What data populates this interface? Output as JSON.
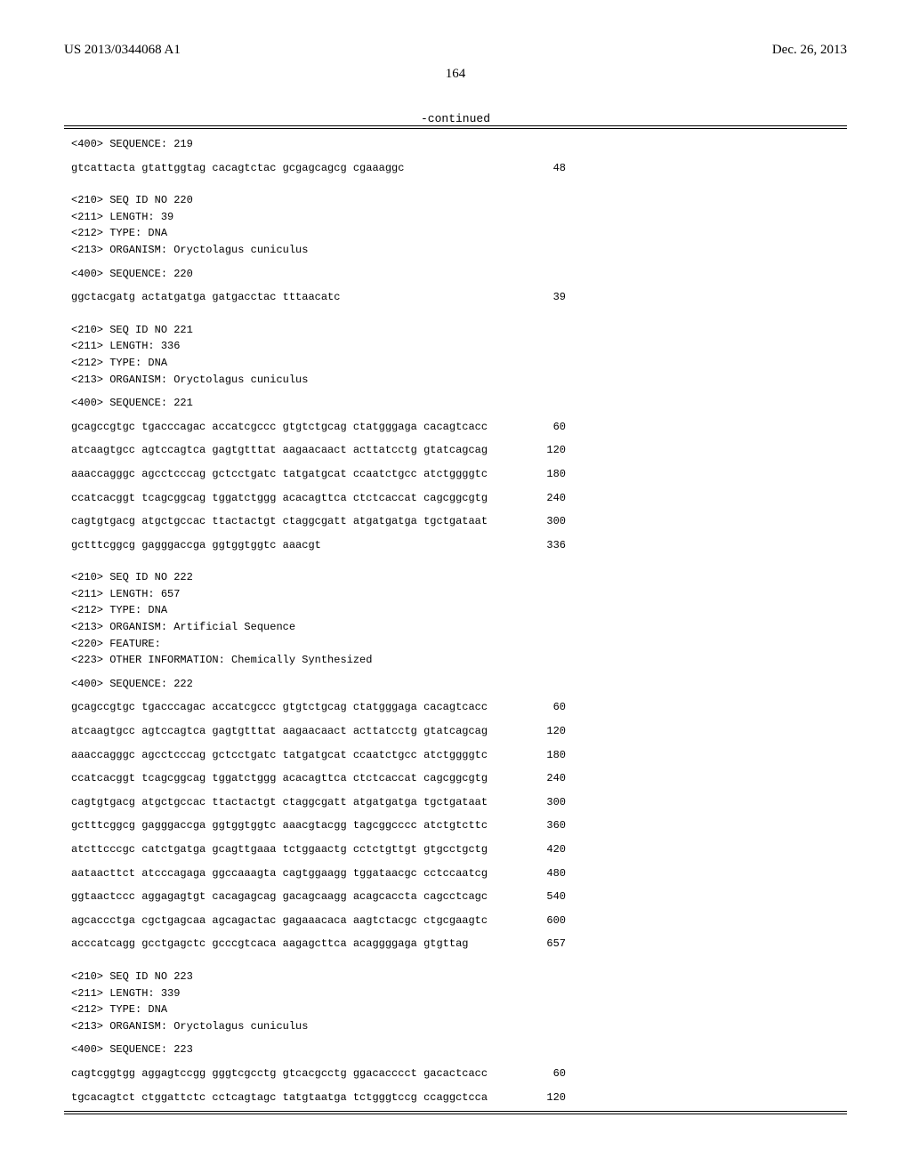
{
  "header": {
    "pubnum": "US 2013/0344068 A1",
    "pubdate": "Dec. 26, 2013",
    "pagenum": "164",
    "continued": "-continued"
  },
  "blocks": [
    {
      "t": "meta",
      "v": "<400> SEQUENCE: 219"
    },
    {
      "t": "gapsm"
    },
    {
      "t": "seq",
      "s": "gtcattacta gtattggtag cacagtctac gcgagcagcg cgaaaggc",
      "n": "48"
    },
    {
      "t": "gap"
    },
    {
      "t": "meta",
      "v": "<210> SEQ ID NO 220"
    },
    {
      "t": "meta",
      "v": "<211> LENGTH: 39"
    },
    {
      "t": "meta",
      "v": "<212> TYPE: DNA"
    },
    {
      "t": "meta",
      "v": "<213> ORGANISM: Oryctolagus cuniculus"
    },
    {
      "t": "gapsm"
    },
    {
      "t": "meta",
      "v": "<400> SEQUENCE: 220"
    },
    {
      "t": "gapsm"
    },
    {
      "t": "seq",
      "s": "ggctacgatg actatgatga gatgacctac tttaacatc",
      "n": "39"
    },
    {
      "t": "gap"
    },
    {
      "t": "meta",
      "v": "<210> SEQ ID NO 221"
    },
    {
      "t": "meta",
      "v": "<211> LENGTH: 336"
    },
    {
      "t": "meta",
      "v": "<212> TYPE: DNA"
    },
    {
      "t": "meta",
      "v": "<213> ORGANISM: Oryctolagus cuniculus"
    },
    {
      "t": "gapsm"
    },
    {
      "t": "meta",
      "v": "<400> SEQUENCE: 221"
    },
    {
      "t": "gapsm"
    },
    {
      "t": "seq",
      "s": "gcagccgtgc tgacccagac accatcgccc gtgtctgcag ctatgggaga cacagtcacc",
      "n": "60"
    },
    {
      "t": "gapsm"
    },
    {
      "t": "seq",
      "s": "atcaagtgcc agtccagtca gagtgtttat aagaacaact acttatcctg gtatcagcag",
      "n": "120"
    },
    {
      "t": "gapsm"
    },
    {
      "t": "seq",
      "s": "aaaccagggc agcctcccag gctcctgatc tatgatgcat ccaatctgcc atctggggtc",
      "n": "180"
    },
    {
      "t": "gapsm"
    },
    {
      "t": "seq",
      "s": "ccatcacggt tcagcggcag tggatctggg acacagttca ctctcaccat cagcggcgtg",
      "n": "240"
    },
    {
      "t": "gapsm"
    },
    {
      "t": "seq",
      "s": "cagtgtgacg atgctgccac ttactactgt ctaggcgatt atgatgatga tgctgataat",
      "n": "300"
    },
    {
      "t": "gapsm"
    },
    {
      "t": "seq",
      "s": "gctttcggcg gagggaccga ggtggtggtc aaacgt",
      "n": "336"
    },
    {
      "t": "gap"
    },
    {
      "t": "meta",
      "v": "<210> SEQ ID NO 222"
    },
    {
      "t": "meta",
      "v": "<211> LENGTH: 657"
    },
    {
      "t": "meta",
      "v": "<212> TYPE: DNA"
    },
    {
      "t": "meta",
      "v": "<213> ORGANISM: Artificial Sequence"
    },
    {
      "t": "meta",
      "v": "<220> FEATURE:"
    },
    {
      "t": "meta",
      "v": "<223> OTHER INFORMATION: Chemically Synthesized"
    },
    {
      "t": "gapsm"
    },
    {
      "t": "meta",
      "v": "<400> SEQUENCE: 222"
    },
    {
      "t": "gapsm"
    },
    {
      "t": "seq",
      "s": "gcagccgtgc tgacccagac accatcgccc gtgtctgcag ctatgggaga cacagtcacc",
      "n": "60"
    },
    {
      "t": "gapsm"
    },
    {
      "t": "seq",
      "s": "atcaagtgcc agtccagtca gagtgtttat aagaacaact acttatcctg gtatcagcag",
      "n": "120"
    },
    {
      "t": "gapsm"
    },
    {
      "t": "seq",
      "s": "aaaccagggc agcctcccag gctcctgatc tatgatgcat ccaatctgcc atctggggtc",
      "n": "180"
    },
    {
      "t": "gapsm"
    },
    {
      "t": "seq",
      "s": "ccatcacggt tcagcggcag tggatctggg acacagttca ctctcaccat cagcggcgtg",
      "n": "240"
    },
    {
      "t": "gapsm"
    },
    {
      "t": "seq",
      "s": "cagtgtgacg atgctgccac ttactactgt ctaggcgatt atgatgatga tgctgataat",
      "n": "300"
    },
    {
      "t": "gapsm"
    },
    {
      "t": "seq",
      "s": "gctttcggcg gagggaccga ggtggtggtc aaacgtacgg tagcggcccc atctgtcttc",
      "n": "360"
    },
    {
      "t": "gapsm"
    },
    {
      "t": "seq",
      "s": "atcttcccgc catctgatga gcagttgaaa tctggaactg cctctgttgt gtgcctgctg",
      "n": "420"
    },
    {
      "t": "gapsm"
    },
    {
      "t": "seq",
      "s": "aataacttct atcccagaga ggccaaagta cagtggaagg tggataacgc cctccaatcg",
      "n": "480"
    },
    {
      "t": "gapsm"
    },
    {
      "t": "seq",
      "s": "ggtaactccc aggagagtgt cacagagcag gacagcaagg acagcaccta cagcctcagc",
      "n": "540"
    },
    {
      "t": "gapsm"
    },
    {
      "t": "seq",
      "s": "agcaccctga cgctgagcaa agcagactac gagaaacaca aagtctacgc ctgcgaagtc",
      "n": "600"
    },
    {
      "t": "gapsm"
    },
    {
      "t": "seq",
      "s": "acccatcagg gcctgagctc gcccgtcaca aagagcttca acaggggaga gtgttag",
      "n": "657"
    },
    {
      "t": "gap"
    },
    {
      "t": "meta",
      "v": "<210> SEQ ID NO 223"
    },
    {
      "t": "meta",
      "v": "<211> LENGTH: 339"
    },
    {
      "t": "meta",
      "v": "<212> TYPE: DNA"
    },
    {
      "t": "meta",
      "v": "<213> ORGANISM: Oryctolagus cuniculus"
    },
    {
      "t": "gapsm"
    },
    {
      "t": "meta",
      "v": "<400> SEQUENCE: 223"
    },
    {
      "t": "gapsm"
    },
    {
      "t": "seq",
      "s": "cagtcggtgg aggagtccgg gggtcgcctg gtcacgcctg ggacacccct gacactcacc",
      "n": "60"
    },
    {
      "t": "gapsm"
    },
    {
      "t": "seq",
      "s": "tgcacagtct ctggattctc cctcagtagc tatgtaatga tctgggtccg ccaggctcca",
      "n": "120"
    }
  ]
}
